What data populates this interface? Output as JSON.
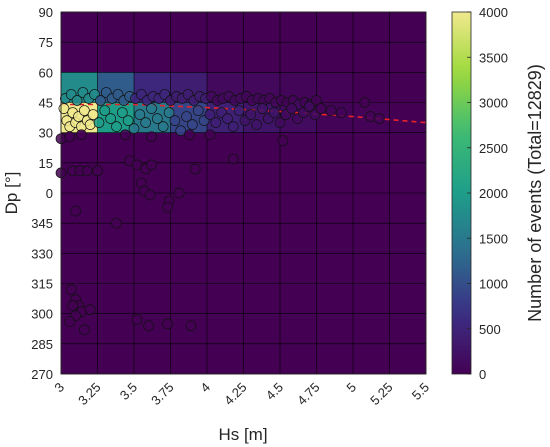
{
  "chart_data": {
    "type": "heatmap",
    "xlabel": "Hs [m]",
    "ylabel": "Dp [°]",
    "colorbar_label": "Number of events (Total=12829)",
    "xlim": [
      3,
      5.5
    ],
    "x_ticks": [
      3,
      3.25,
      3.5,
      3.75,
      4,
      4.25,
      4.5,
      4.75,
      5,
      5.25,
      5.5
    ],
    "x_tick_labels": [
      "3",
      "3.25",
      "3.5",
      "3.75",
      "4",
      "4.25",
      "4.5",
      "4.75",
      "5",
      "5.25",
      "5.5"
    ],
    "y_tick_labels": [
      "90",
      "75",
      "60",
      "45",
      "30",
      "15",
      "0",
      "345",
      "330",
      "315",
      "300",
      "285",
      "270"
    ],
    "clim": [
      0,
      4000
    ],
    "colorbar_ticks": [
      0,
      500,
      1000,
      1500,
      2000,
      2500,
      3000,
      3500,
      4000
    ],
    "colormap": [
      "#440154",
      "#3b2f85",
      "#2c6d8e",
      "#1e9e89",
      "#3dbb74",
      "#9dd93b",
      "#f1e98e"
    ],
    "background_value": 0,
    "cells": [
      {
        "x": [
          3.0,
          3.25
        ],
        "y": [
          45,
          60
        ],
        "value": 1750
      },
      {
        "x": [
          3.25,
          3.5
        ],
        "y": [
          45,
          60
        ],
        "value": 1150
      },
      {
        "x": [
          3.5,
          3.75
        ],
        "y": [
          45,
          60
        ],
        "value": 550
      },
      {
        "x": [
          3.75,
          4.0
        ],
        "y": [
          45,
          60
        ],
        "value": 400
      },
      {
        "x": [
          4.0,
          4.25
        ],
        "y": [
          45,
          60
        ],
        "value": 120
      },
      {
        "x": [
          4.25,
          4.5
        ],
        "y": [
          45,
          60
        ],
        "value": 90
      },
      {
        "x": [
          4.5,
          4.75
        ],
        "y": [
          45,
          60
        ],
        "value": 60
      },
      {
        "x": [
          4.75,
          5.0
        ],
        "y": [
          45,
          60
        ],
        "value": 30
      },
      {
        "x": [
          3.0,
          3.25
        ],
        "y": [
          30,
          45
        ],
        "value": 4000
      },
      {
        "x": [
          3.25,
          3.5
        ],
        "y": [
          30,
          45
        ],
        "value": 2000
      },
      {
        "x": [
          3.5,
          3.75
        ],
        "y": [
          30,
          45
        ],
        "value": 1500
      },
      {
        "x": [
          3.75,
          4.0
        ],
        "y": [
          30,
          45
        ],
        "value": 900
      },
      {
        "x": [
          4.0,
          4.25
        ],
        "y": [
          30,
          45
        ],
        "value": 450
      },
      {
        "x": [
          4.25,
          4.5
        ],
        "y": [
          30,
          45
        ],
        "value": 280
      },
      {
        "x": [
          4.5,
          4.75
        ],
        "y": [
          30,
          45
        ],
        "value": 150
      },
      {
        "x": [
          4.75,
          5.0
        ],
        "y": [
          30,
          45
        ],
        "value": 50
      },
      {
        "x": [
          5.0,
          5.25
        ],
        "y": [
          30,
          45
        ],
        "value": 25
      }
    ],
    "trend_line": {
      "style": "dashed",
      "color": "#e8222a",
      "x": [
        3.0,
        3.5,
        4.0,
        4.5,
        5.0,
        5.5
      ],
      "y": [
        44,
        44,
        42.5,
        40.5,
        38,
        35
      ]
    },
    "scatter": [
      [
        3.02,
        42
      ],
      [
        3.04,
        36
      ],
      [
        3.06,
        33
      ],
      [
        3.08,
        40
      ],
      [
        3.1,
        35
      ],
      [
        3.12,
        38
      ],
      [
        3.14,
        33
      ],
      [
        3.16,
        41
      ],
      [
        3.18,
        36
      ],
      [
        3.2,
        34
      ],
      [
        3.03,
        47
      ],
      [
        3.07,
        49
      ],
      [
        3.11,
        46
      ],
      [
        3.15,
        50
      ],
      [
        3.19,
        47
      ],
      [
        3.23,
        49
      ],
      [
        3.27,
        46
      ],
      [
        3.31,
        50
      ],
      [
        3.35,
        47
      ],
      [
        3.39,
        49
      ],
      [
        3.43,
        46
      ],
      [
        3.47,
        48
      ],
      [
        3.51,
        47
      ],
      [
        3.55,
        49
      ],
      [
        3.59,
        46
      ],
      [
        3.63,
        48
      ],
      [
        3.67,
        47
      ],
      [
        3.71,
        49
      ],
      [
        3.75,
        46
      ],
      [
        3.79,
        48
      ],
      [
        3.83,
        47
      ],
      [
        3.87,
        49
      ],
      [
        3.91,
        46
      ],
      [
        3.95,
        48
      ],
      [
        3.99,
        47
      ],
      [
        4.03,
        48
      ],
      [
        4.07,
        46
      ],
      [
        4.11,
        47
      ],
      [
        4.15,
        48
      ],
      [
        4.19,
        46
      ],
      [
        4.23,
        47
      ],
      [
        4.27,
        48
      ],
      [
        4.31,
        46
      ],
      [
        4.35,
        47
      ],
      [
        4.39,
        46
      ],
      [
        4.43,
        47
      ],
      [
        4.47,
        45
      ],
      [
        4.51,
        46
      ],
      [
        4.55,
        45
      ],
      [
        4.59,
        46
      ],
      [
        4.63,
        44
      ],
      [
        4.67,
        45
      ],
      [
        4.71,
        44
      ],
      [
        4.75,
        46
      ],
      [
        3.22,
        39
      ],
      [
        3.26,
        35
      ],
      [
        3.3,
        41
      ],
      [
        3.34,
        37
      ],
      [
        3.38,
        33
      ],
      [
        3.42,
        40
      ],
      [
        3.46,
        36
      ],
      [
        3.5,
        32
      ],
      [
        3.54,
        39
      ],
      [
        3.58,
        35
      ],
      [
        3.62,
        42
      ],
      [
        3.66,
        37
      ],
      [
        3.7,
        33
      ],
      [
        3.74,
        40
      ],
      [
        3.78,
        36
      ],
      [
        3.82,
        31
      ],
      [
        3.86,
        38
      ],
      [
        3.9,
        34
      ],
      [
        3.94,
        41
      ],
      [
        3.98,
        36
      ],
      [
        4.02,
        39
      ],
      [
        4.06,
        35
      ],
      [
        4.1,
        40
      ],
      [
        4.14,
        37
      ],
      [
        4.18,
        33
      ],
      [
        4.22,
        41
      ],
      [
        4.26,
        36
      ],
      [
        4.3,
        39
      ],
      [
        4.34,
        34
      ],
      [
        4.38,
        42
      ],
      [
        4.42,
        37
      ],
      [
        4.46,
        40
      ],
      [
        4.5,
        35
      ],
      [
        4.54,
        39
      ],
      [
        4.58,
        42
      ],
      [
        4.62,
        37
      ],
      [
        4.66,
        40
      ],
      [
        4.7,
        43
      ],
      [
        4.74,
        39
      ],
      [
        4.78,
        42
      ],
      [
        4.85,
        41
      ],
      [
        4.92,
        40
      ],
      [
        5.08,
        45
      ],
      [
        5.12,
        38
      ],
      [
        5.18,
        37
      ],
      [
        4.52,
        26
      ],
      [
        4.18,
        17
      ],
      [
        3.0,
        27
      ],
      [
        3.06,
        28
      ],
      [
        3.14,
        29
      ],
      [
        3.44,
        29
      ],
      [
        3.62,
        28
      ],
      [
        3.88,
        29
      ],
      [
        4.02,
        29
      ],
      [
        3.08,
        11
      ],
      [
        3.0,
        10
      ],
      [
        3.13,
        11
      ],
      [
        3.18,
        11
      ],
      [
        3.25,
        11
      ],
      [
        3.47,
        16
      ],
      [
        3.52,
        14
      ],
      [
        3.58,
        12
      ],
      [
        3.62,
        14
      ],
      [
        3.55,
        5
      ],
      [
        3.57,
        1
      ],
      [
        3.74,
        -4
      ],
      [
        3.73,
        -7
      ],
      [
        3.81,
        0
      ],
      [
        3.61,
        -1
      ],
      [
        3.92,
        12
      ],
      [
        3.1,
        -9
      ],
      [
        3.38,
        -15
      ],
      [
        3.07,
        -48
      ],
      [
        3.1,
        -53
      ],
      [
        3.12,
        -56
      ],
      [
        3.14,
        -59
      ],
      [
        3.08,
        -56
      ],
      [
        3.2,
        -58
      ],
      [
        3.1,
        -61
      ],
      [
        3.06,
        -64
      ],
      [
        3.16,
        -68
      ],
      [
        3.52,
        -63
      ],
      [
        3.6,
        -66
      ],
      [
        3.73,
        -65
      ],
      [
        3.89,
        -66
      ]
    ]
  }
}
